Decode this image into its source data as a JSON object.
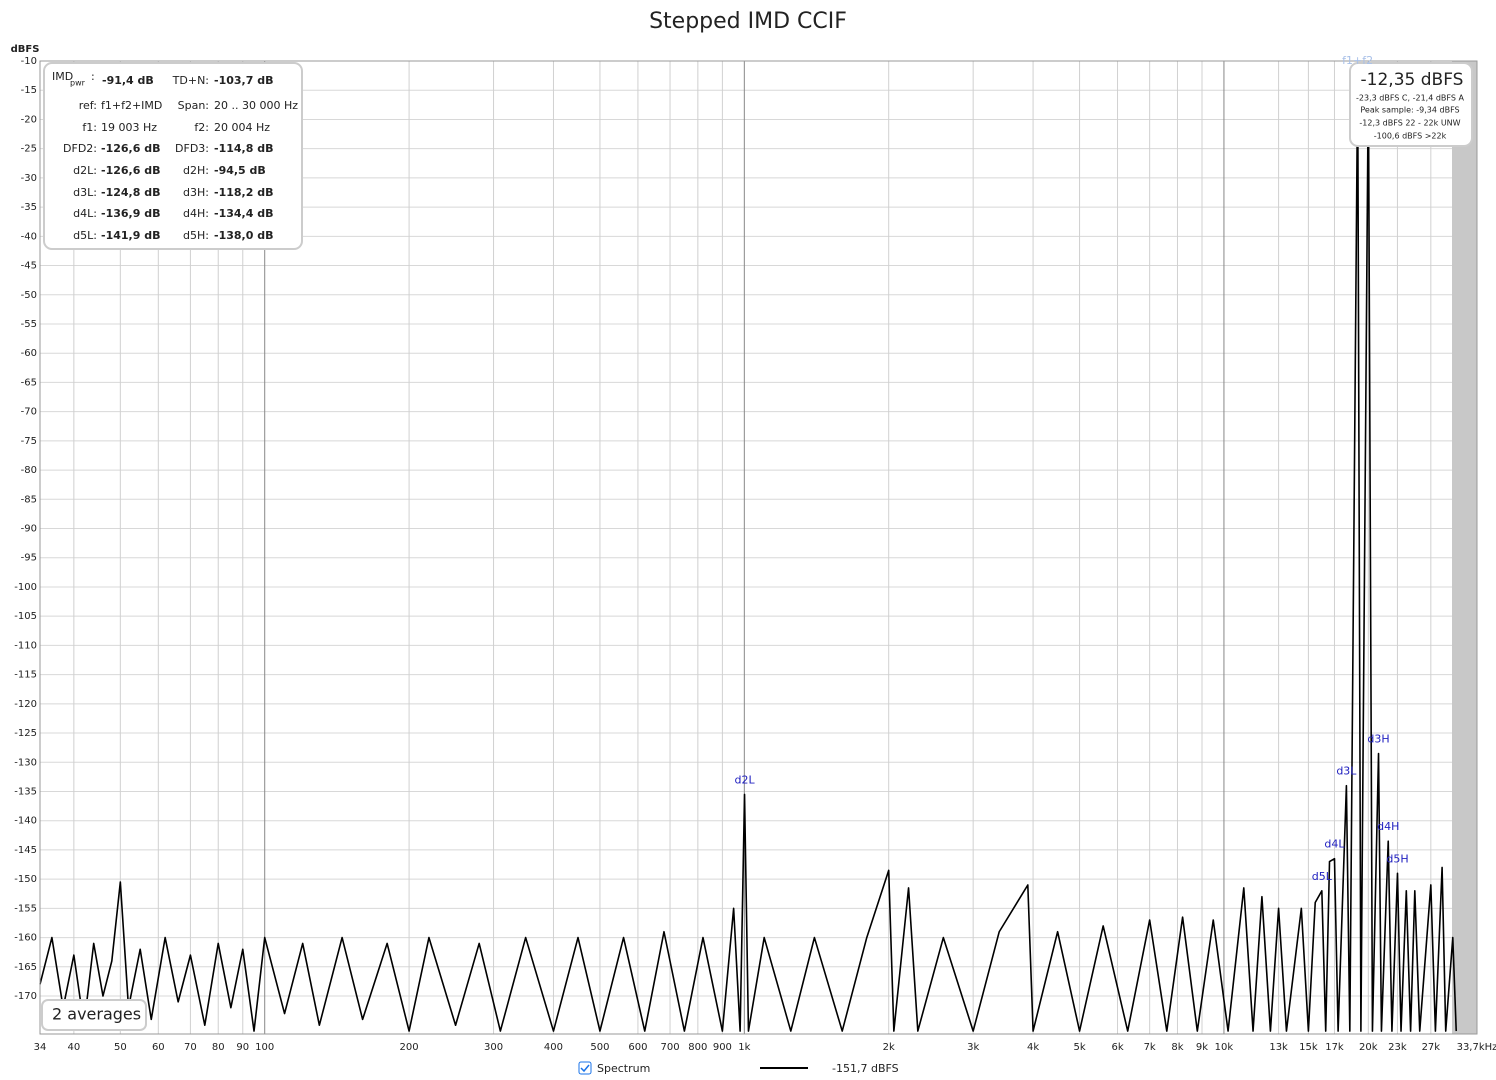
{
  "chart_data": {
    "type": "line",
    "title": "Stepped IMD CCIF",
    "y_label": "dBFS",
    "log_x": true,
    "grid": true,
    "xlim": [
      34,
      33700
    ],
    "ylim": [
      -176.5,
      -10
    ],
    "xticks": [
      34,
      40,
      50,
      60,
      70,
      80,
      90,
      100,
      200,
      300,
      400,
      500,
      600,
      700,
      800,
      900,
      {
        "value": 1000,
        "label": "1k"
      },
      {
        "value": 2000,
        "label": "2k"
      },
      {
        "value": 3000,
        "label": "3k"
      },
      {
        "value": 4000,
        "label": "4k"
      },
      {
        "value": 5000,
        "label": "5k"
      },
      {
        "value": 6000,
        "label": "6k"
      },
      {
        "value": 7000,
        "label": "7k"
      },
      {
        "value": 8000,
        "label": "8k"
      },
      {
        "value": 9000,
        "label": "9k"
      },
      {
        "value": 10000,
        "label": "10k"
      },
      {
        "value": 13000,
        "label": "13k"
      },
      {
        "value": 15000,
        "label": "15k"
      },
      {
        "value": 17000,
        "label": "17k"
      },
      {
        "value": 20000,
        "label": "20k"
      },
      {
        "value": 23000,
        "label": "23k"
      },
      {
        "value": 27000,
        "label": "27k"
      },
      {
        "value": 33700,
        "label": "33,7kHz"
      }
    ],
    "yticks": [
      -10,
      -15,
      -20,
      -25,
      -30,
      -35,
      -40,
      -45,
      -50,
      -55,
      -60,
      -65,
      -70,
      -75,
      -80,
      -85,
      -90,
      -95,
      -100,
      -105,
      -110,
      -115,
      -120,
      -125,
      -130,
      -135,
      -140,
      -145,
      -150,
      -155,
      -160,
      -165,
      -170
    ],
    "x": [
      34,
      36,
      38,
      40,
      42,
      44,
      46,
      48,
      50,
      52,
      55,
      58,
      62,
      66,
      70,
      75,
      80,
      85,
      90,
      95,
      100,
      110,
      120,
      130,
      145,
      160,
      180,
      200,
      220,
      250,
      280,
      310,
      350,
      400,
      450,
      500,
      560,
      620,
      680,
      750,
      820,
      900,
      950,
      980,
      1001,
      1020,
      1100,
      1250,
      1400,
      1600,
      1800,
      2000,
      2050,
      2200,
      2300,
      2600,
      3000,
      3400,
      3900,
      4000,
      4500,
      5000,
      5600,
      6300,
      7000,
      7600,
      8200,
      8800,
      9500,
      10200,
      11000,
      11500,
      12000,
      12500,
      13000,
      13500,
      14500,
      15000,
      15500,
      16000,
      16300,
      16600,
      17002,
      17300,
      18002,
      18300,
      19003,
      19300,
      20004,
      20400,
      21005,
      21300,
      22006,
      22400,
      23007,
      23400,
      24000,
      24500,
      25000,
      25600,
      27000,
      27600,
      28500,
      29000,
      30000,
      30500
    ],
    "series": [
      {
        "name": "Spectrum",
        "color": "#000000",
        "values": [
          -168,
          -160,
          -172,
          -163,
          -175,
          -161,
          -170,
          -164,
          -150.5,
          -172,
          -162,
          -174,
          -160,
          -171,
          -163,
          -175,
          -161,
          -172,
          -162,
          -176,
          -160,
          -173,
          -161,
          -175,
          -160,
          -174,
          -161,
          -176,
          -160,
          -175,
          -161,
          -176,
          -160,
          -176,
          -160,
          -176,
          -160,
          -176,
          -159,
          -176,
          -160,
          -176,
          -155,
          -176,
          -135.5,
          -176,
          -160,
          -176,
          -160,
          -176,
          -160,
          -148.5,
          -176,
          -151.5,
          -176,
          -160,
          -176,
          -159,
          -151,
          -176,
          -159,
          -176,
          -158,
          -176,
          -157,
          -176,
          -156.5,
          -176,
          -157,
          -176,
          -151.5,
          -176,
          -153,
          -176,
          -155,
          -176,
          -155,
          -176,
          -154,
          -152,
          -176,
          -147,
          -146.5,
          -176,
          -134,
          -176,
          -12.4,
          -176,
          -12.4,
          -176,
          -128.5,
          -176,
          -143.5,
          -176,
          -149,
          -176,
          -152,
          -176,
          -152,
          -176,
          -151,
          -176,
          -148,
          -176,
          -160,
          -176
        ]
      }
    ],
    "legend_value": "-151,7 dBFS",
    "peak_labels": [
      {
        "label": "d2L",
        "x": 1001
      },
      {
        "label": "d5L",
        "x": 16000
      },
      {
        "label": "d4L",
        "x": 17002
      },
      {
        "label": "d3L",
        "x": 18002
      },
      {
        "label": "f1+f2",
        "x": 19003
      },
      {
        "label": "d3H",
        "x": 21005
      },
      {
        "label": "d4H",
        "x": 22006
      },
      {
        "label": "d5H",
        "x": 23007
      }
    ],
    "info_box": {
      "title": "IMD",
      "title_sub": "pwr",
      "title_colon": ":",
      "title_value": "-91,4 dB",
      "rows": [
        [
          {
            "label": "TD+N:",
            "value": "-103,7 dB"
          }
        ],
        [
          {
            "label": "ref:",
            "value": "f1+f2+IMD"
          },
          {
            "label": "Span:",
            "value": "20 .. 30 000 Hz"
          }
        ],
        [
          {
            "label": "f1:",
            "value": "19 003 Hz"
          },
          {
            "label": "f2:",
            "value": "20 004 Hz"
          }
        ],
        [
          {
            "label": "DFD2:",
            "value": "-126,6 dB"
          },
          {
            "label": "DFD3:",
            "value": "-114,8 dB"
          }
        ],
        [
          {
            "label": "d2L:",
            "value": "-126,6 dB"
          },
          {
            "label": "d2H:",
            "value": "-94,5 dB"
          }
        ],
        [
          {
            "label": "d3L:",
            "value": "-124,8 dB"
          },
          {
            "label": "d3H:",
            "value": "-118,2 dB"
          }
        ],
        [
          {
            "label": "d4L:",
            "value": "-136,9 dB"
          },
          {
            "label": "d4H:",
            "value": "-134,4 dB"
          }
        ],
        [
          {
            "label": "d5L:",
            "value": "-141,9 dB"
          },
          {
            "label": "d5H:",
            "value": "-138,0 dB"
          }
        ]
      ]
    },
    "readout": {
      "main": "-12,35 dBFS",
      "lines": [
        "-23,3 dBFS C, -21,4 dBFS A",
        "Peak sample: -9,34 dBFS",
        "-12,3 dBFS 22 - 22k UNW",
        "-100,6 dBFS >22k"
      ]
    },
    "averages": "2 averages"
  }
}
